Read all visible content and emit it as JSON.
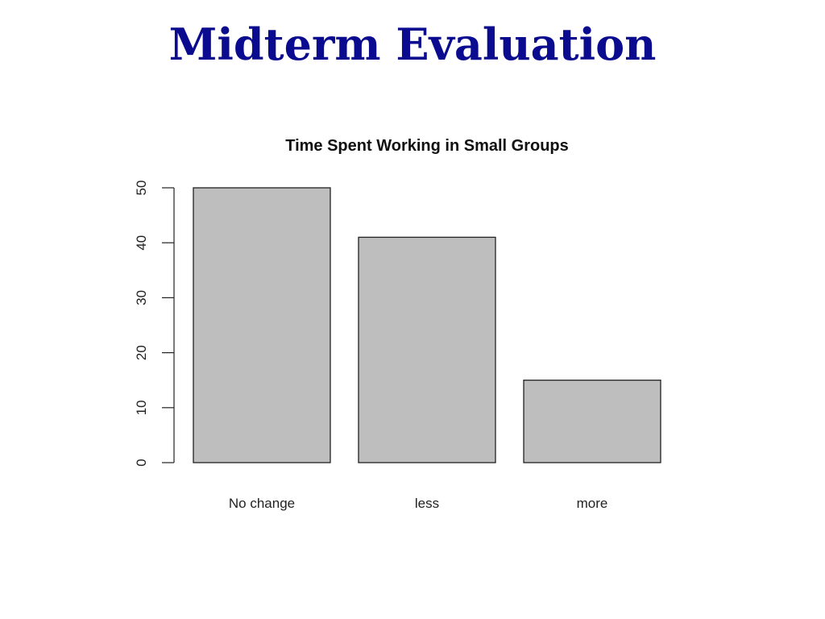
{
  "slide": {
    "title": "Midterm Evaluation",
    "title_color": "#0b0b8f"
  },
  "chart_data": {
    "type": "bar",
    "title": "Time Spent Working in Small Groups",
    "xlabel": "",
    "ylabel": "",
    "categories": [
      "No change",
      "less",
      "more"
    ],
    "values": [
      50,
      41,
      15
    ],
    "ylim": [
      0,
      50
    ],
    "yticks": [
      0,
      10,
      20,
      30,
      40,
      50
    ],
    "grid": false,
    "bar_color": "#bebebe",
    "bar_border_color": "#222222"
  }
}
